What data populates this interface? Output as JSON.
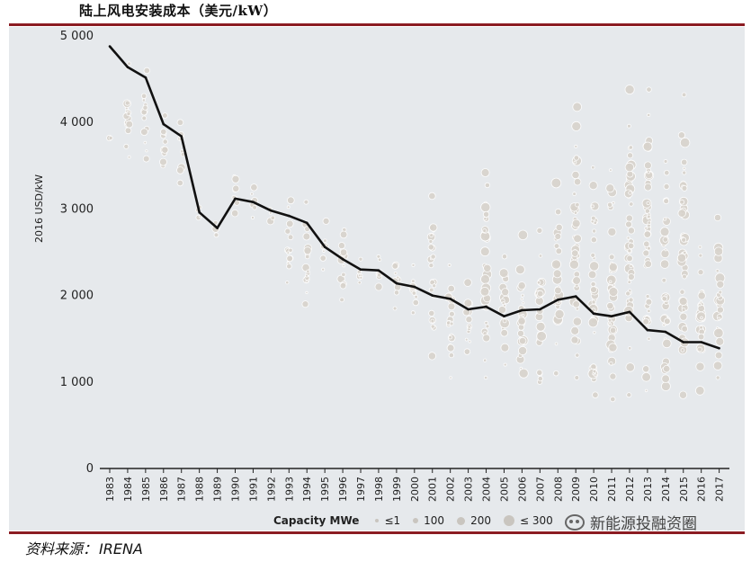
{
  "header": {
    "title": "陆上风电安装成本（美元/kW）"
  },
  "footer": {
    "source_label": "资料来源：",
    "source_value": "IRENA",
    "watermark": "新能源投融资圈"
  },
  "legend": {
    "title": "Capacity MWe",
    "items": [
      {
        "label": "≤1",
        "size": 1
      },
      {
        "label": "100",
        "size": 100
      },
      {
        "label": "200",
        "size": 200
      },
      {
        "label": "≤ 300",
        "size": 300
      }
    ]
  },
  "colors": {
    "panel": "#e6e9ec",
    "rule": "#8b1c22",
    "line": "#111111",
    "bubble": "#d8d3cc",
    "bubble_edge": "#ffffff"
  },
  "chart_data": {
    "type": "line",
    "title": "",
    "xlabel": "",
    "ylabel": "2016 USD/kW",
    "ylim": [
      0,
      5000
    ],
    "yticks": [
      0,
      1000,
      2000,
      3000,
      4000,
      5000
    ],
    "ytick_labels": [
      "0",
      "1 000",
      "2 000",
      "3 000",
      "4 000",
      "5 000"
    ],
    "grid": false,
    "categories": [
      "1983",
      "1984",
      "1985",
      "1986",
      "1987",
      "1988",
      "1989",
      "1990",
      "1991",
      "1992",
      "1993",
      "1994",
      "1995",
      "1996",
      "1997",
      "1998",
      "1999",
      "2000",
      "2001",
      "2002",
      "2003",
      "2004",
      "2005",
      "2006",
      "2007",
      "2008",
      "2009",
      "2010",
      "2011",
      "2012",
      "2013",
      "2014",
      "2015",
      "2016",
      "2017"
    ],
    "series": [
      {
        "values": [
          4880,
          4640,
          4520,
          3980,
          3840,
          2960,
          2780,
          3120,
          3080,
          2980,
          2920,
          2840,
          2560,
          2420,
          2300,
          2290,
          2140,
          2100,
          2000,
          1960,
          1840,
          1870,
          1760,
          1830,
          1840,
          1950,
          1990,
          1790,
          1760,
          1810,
          1600,
          1580,
          1460,
          1460,
          1390
        ]
      }
    ],
    "project_spread": [
      {
        "year": "1983",
        "min": 3820,
        "max": 3820
      },
      {
        "year": "1984",
        "min": 3600,
        "max": 4680
      },
      {
        "year": "1985",
        "min": 3580,
        "max": 4600
      },
      {
        "year": "1986",
        "min": 3500,
        "max": 4080
      },
      {
        "year": "1987",
        "min": 3300,
        "max": 4000
      },
      {
        "year": "1988",
        "min": 2900,
        "max": 3020
      },
      {
        "year": "1989",
        "min": 2700,
        "max": 2840
      },
      {
        "year": "1990",
        "min": 2950,
        "max": 3380
      },
      {
        "year": "1991",
        "min": 2900,
        "max": 3250
      },
      {
        "year": "1992",
        "min": 2860,
        "max": 3000
      },
      {
        "year": "1993",
        "min": 2150,
        "max": 3100
      },
      {
        "year": "1994",
        "min": 1900,
        "max": 3080
      },
      {
        "year": "1995",
        "min": 2300,
        "max": 2860
      },
      {
        "year": "1996",
        "min": 1950,
        "max": 2760
      },
      {
        "year": "1997",
        "min": 2150,
        "max": 2420
      },
      {
        "year": "1998",
        "min": 2100,
        "max": 2450
      },
      {
        "year": "1999",
        "min": 1850,
        "max": 2350
      },
      {
        "year": "2000",
        "min": 1800,
        "max": 2350
      },
      {
        "year": "2001",
        "min": 1300,
        "max": 3150
      },
      {
        "year": "2002",
        "min": 1050,
        "max": 2350
      },
      {
        "year": "2003",
        "min": 1350,
        "max": 2150
      },
      {
        "year": "2004",
        "min": 1050,
        "max": 3420
      },
      {
        "year": "2005",
        "min": 1200,
        "max": 2450
      },
      {
        "year": "2006",
        "min": 1100,
        "max": 2700
      },
      {
        "year": "2007",
        "min": 1000,
        "max": 2750
      },
      {
        "year": "2008",
        "min": 1100,
        "max": 3300
      },
      {
        "year": "2009",
        "min": 1050,
        "max": 4180
      },
      {
        "year": "2010",
        "min": 850,
        "max": 3480
      },
      {
        "year": "2011",
        "min": 800,
        "max": 3450
      },
      {
        "year": "2012",
        "min": 850,
        "max": 4380
      },
      {
        "year": "2013",
        "min": 900,
        "max": 4380
      },
      {
        "year": "2014",
        "min": 950,
        "max": 3550
      },
      {
        "year": "2015",
        "min": 850,
        "max": 4320
      },
      {
        "year": "2016",
        "min": 900,
        "max": 2560
      },
      {
        "year": "2017",
        "min": 1050,
        "max": 2900
      }
    ]
  }
}
